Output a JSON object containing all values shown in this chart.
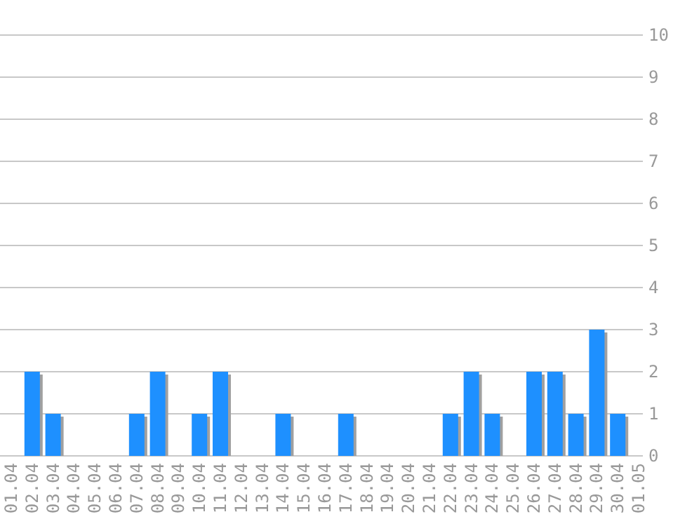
{
  "chart_data": {
    "type": "bar",
    "categories": [
      "01.04",
      "02.04",
      "03.04",
      "04.04",
      "05.04",
      "06.04",
      "07.04",
      "08.04",
      "09.04",
      "10.04",
      "11.04",
      "12.04",
      "13.04",
      "14.04",
      "15.04",
      "16.04",
      "17.04",
      "18.04",
      "19.04",
      "20.04",
      "21.04",
      "22.04",
      "23.04",
      "24.04",
      "25.04",
      "26.04",
      "27.04",
      "28.04",
      "29.04",
      "30.04",
      "01.05"
    ],
    "values": [
      0,
      2,
      1,
      0,
      0,
      0,
      1,
      2,
      0,
      1,
      2,
      0,
      0,
      1,
      0,
      0,
      1,
      0,
      0,
      0,
      0,
      1,
      2,
      1,
      0,
      2,
      2,
      1,
      3,
      1,
      0
    ],
    "color": "#1e90ff",
    "ylim": [
      0,
      10
    ],
    "yticks": [
      0,
      1,
      2,
      3,
      4,
      5,
      6,
      7,
      8,
      9,
      10
    ],
    "grid": "y"
  }
}
